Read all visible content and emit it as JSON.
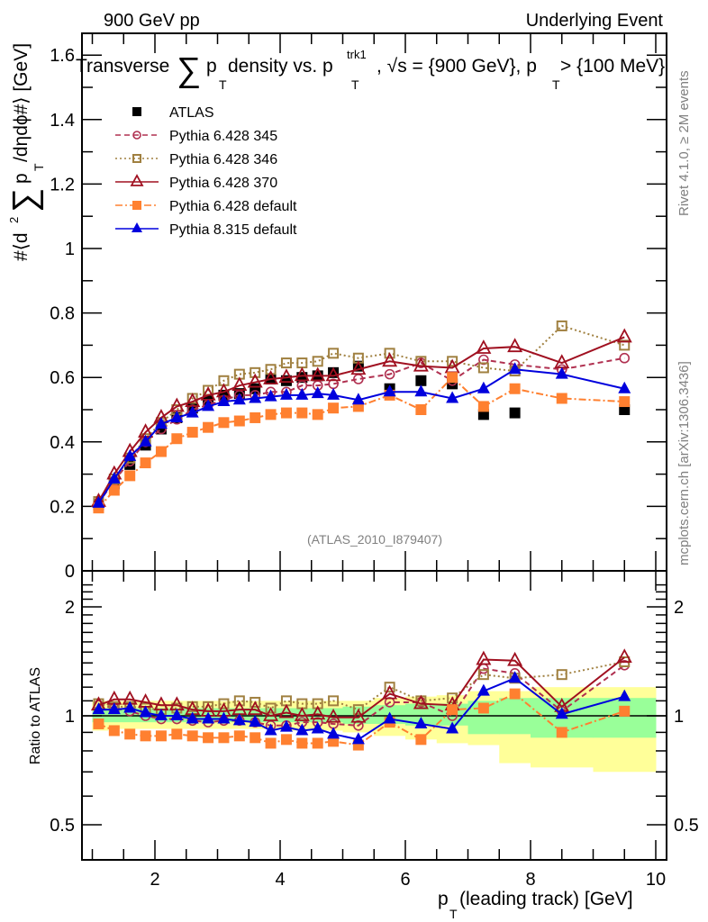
{
  "header": {
    "left_label": "900 GeV pp",
    "right_label": "Underlying Event"
  },
  "side_labels": {
    "rivet": "Rivet 4.1.0, ≥ 2M events",
    "mcplots": "mcplots.cern.ch [arXiv:1306.3436]"
  },
  "chart_data": [
    {
      "type": "line",
      "panel": "main",
      "title_parts": {
        "a": "Transverse",
        "sigma": "∑",
        "p": "p",
        "sub_T": "T",
        "b": " density vs. p",
        "sup_trk1": "trk1",
        "c": ", √s = {900 GeV}, p",
        "d": " > {100 MeV}"
      },
      "ylabel_parts": {
        "a": "#⟨d",
        "sup2": "2",
        "sigma": "∑",
        "b": "p",
        "sub_T": "T",
        "c": " /dηdϕ#⟩ [GeV]"
      },
      "analysis_label": "(ATLAS_2010_I879407)",
      "xlim": [
        0.85,
        10.15
      ],
      "ylim": [
        0,
        1.6
      ],
      "yticks": [
        0,
        0.2,
        0.4,
        0.6,
        0.8,
        1,
        1.2,
        1.4,
        1.6
      ],
      "ytick_labels": [
        "0",
        "0.2",
        "0.4",
        "0.6",
        "0.8",
        "1",
        "1.2",
        "1.4",
        "1.6"
      ],
      "legend_position": "top-left",
      "x": [
        1.1,
        1.35,
        1.6,
        1.85,
        2.1,
        2.35,
        2.6,
        2.85,
        3.1,
        3.35,
        3.6,
        3.85,
        4.1,
        4.35,
        4.6,
        4.85,
        5.25,
        5.75,
        6.25,
        6.75,
        7.25,
        7.75,
        8.5,
        9.5
      ],
      "series": [
        {
          "name": "ATLAS",
          "color": "#000000",
          "marker": "square-filled",
          "line": "none",
          "values": [
            0.205,
            0.27,
            0.33,
            0.39,
            0.44,
            0.475,
            0.505,
            0.53,
            0.545,
            0.55,
            0.565,
            0.595,
            0.59,
            0.6,
            0.605,
            0.615,
            0.635,
            0.565,
            0.59,
            0.58,
            0.485,
            0.49,
            null,
            0.5
          ]
        },
        {
          "name": "Pythia 6.428 345",
          "color": "#b03050",
          "marker": "circle-open",
          "line": "dashed",
          "values": [
            0.21,
            0.28,
            0.34,
            0.4,
            0.44,
            0.47,
            0.5,
            0.515,
            0.53,
            0.545,
            0.545,
            0.555,
            0.555,
            0.575,
            0.575,
            0.58,
            0.595,
            0.61,
            0.645,
            0.59,
            0.655,
            0.64,
            0.625,
            0.66
          ]
        },
        {
          "name": "Pythia 6.428 346",
          "color": "#a08040",
          "marker": "square-open",
          "line": "dotted",
          "values": [
            0.215,
            0.285,
            0.35,
            0.41,
            0.46,
            0.5,
            0.535,
            0.56,
            0.59,
            0.61,
            0.615,
            0.625,
            0.645,
            0.645,
            0.65,
            0.675,
            0.66,
            0.675,
            0.65,
            0.65,
            0.63,
            0.62,
            0.76,
            0.7
          ]
        },
        {
          "name": "Pythia 6.428 370",
          "color": "#a01020",
          "marker": "triangle-open",
          "line": "solid",
          "values": [
            0.215,
            0.3,
            0.37,
            0.43,
            0.475,
            0.51,
            0.525,
            0.545,
            0.555,
            0.575,
            0.585,
            0.595,
            0.6,
            0.605,
            0.605,
            0.605,
            0.625,
            0.65,
            0.635,
            0.63,
            0.69,
            0.695,
            0.645,
            0.725
          ]
        },
        {
          "name": "Pythia 6.428 default",
          "color": "#ff8030",
          "marker": "square-filled",
          "line": "dashdot",
          "values": [
            0.195,
            0.25,
            0.295,
            0.335,
            0.37,
            0.41,
            0.43,
            0.445,
            0.46,
            0.465,
            0.475,
            0.485,
            0.49,
            0.49,
            0.485,
            0.505,
            0.51,
            0.545,
            0.5,
            0.6,
            0.51,
            0.565,
            0.535,
            0.525
          ]
        },
        {
          "name": "Pythia 8.315 default",
          "color": "#0000dd",
          "marker": "triangle-filled",
          "line": "solid",
          "values": [
            0.21,
            0.285,
            0.355,
            0.4,
            0.455,
            0.475,
            0.49,
            0.51,
            0.525,
            0.53,
            0.535,
            0.54,
            0.545,
            0.545,
            0.55,
            0.545,
            0.53,
            0.555,
            0.555,
            0.535,
            0.565,
            0.625,
            0.61,
            0.565
          ]
        }
      ]
    },
    {
      "type": "line",
      "panel": "ratio",
      "ylabel": "Ratio to ATLAS",
      "xlabel_parts": {
        "p": "p",
        "sub_T": "T",
        "rest": " (leading track) [GeV]"
      },
      "yscale": "log",
      "ylim": [
        0.4,
        2.4
      ],
      "xlim": [
        0.85,
        10.15
      ],
      "xticks": [
        2,
        4,
        6,
        8,
        10
      ],
      "xtick_labels": [
        "2",
        "4",
        "6",
        "8",
        "10"
      ],
      "ytick_labels": [
        "0.5",
        "1",
        "2"
      ],
      "yticks": [
        0.5,
        1,
        2
      ],
      "bands": {
        "edges": [
          1.0,
          1.25,
          1.5,
          1.75,
          2.0,
          2.25,
          2.5,
          2.75,
          3.0,
          3.25,
          3.5,
          3.75,
          4.0,
          4.25,
          4.5,
          4.75,
          5.0,
          5.5,
          6.0,
          6.5,
          7.0,
          7.5,
          8.0,
          9.0,
          10.0
        ],
        "inner_color": "#99ff99",
        "outer_color": "#ffff99",
        "inner": [
          [
            0.96,
            1.05
          ],
          [
            0.96,
            1.05
          ],
          [
            0.96,
            1.05
          ],
          [
            0.96,
            1.05
          ],
          [
            0.96,
            1.05
          ],
          [
            0.96,
            1.05
          ],
          [
            0.96,
            1.05
          ],
          [
            0.96,
            1.05
          ],
          [
            0.96,
            1.05
          ],
          [
            0.96,
            1.05
          ],
          [
            0.96,
            1.05
          ],
          [
            0.96,
            1.05
          ],
          [
            0.96,
            1.05
          ],
          [
            0.96,
            1.05
          ],
          [
            0.96,
            1.05
          ],
          [
            0.96,
            1.05
          ],
          [
            0.95,
            1.06
          ],
          [
            0.95,
            1.07
          ],
          [
            0.94,
            1.08
          ],
          [
            0.94,
            1.08
          ],
          [
            0.89,
            1.1
          ],
          [
            0.89,
            1.12
          ],
          [
            0.87,
            1.12
          ],
          [
            0.87,
            1.12
          ]
        ],
        "outer": [
          [
            0.91,
            1.1
          ],
          [
            0.92,
            1.1
          ],
          [
            0.92,
            1.1
          ],
          [
            0.92,
            1.1
          ],
          [
            0.92,
            1.1
          ],
          [
            0.92,
            1.1
          ],
          [
            0.92,
            1.1
          ],
          [
            0.92,
            1.1
          ],
          [
            0.92,
            1.1
          ],
          [
            0.92,
            1.1
          ],
          [
            0.92,
            1.1
          ],
          [
            0.92,
            1.1
          ],
          [
            0.91,
            1.1
          ],
          [
            0.91,
            1.1
          ],
          [
            0.91,
            1.1
          ],
          [
            0.91,
            1.1
          ],
          [
            0.9,
            1.1
          ],
          [
            0.88,
            1.12
          ],
          [
            0.86,
            1.13
          ],
          [
            0.84,
            1.14
          ],
          [
            0.83,
            1.17
          ],
          [
            0.74,
            1.17
          ],
          [
            0.72,
            1.2
          ],
          [
            0.7,
            1.2
          ]
        ]
      },
      "x": [
        1.1,
        1.35,
        1.6,
        1.85,
        2.1,
        2.35,
        2.6,
        2.85,
        3.1,
        3.35,
        3.6,
        3.85,
        4.1,
        4.35,
        4.6,
        4.85,
        5.25,
        5.75,
        6.25,
        6.75,
        7.25,
        7.75,
        8.5,
        9.5
      ],
      "series": [
        {
          "name": "Pythia 6.428 345",
          "color": "#b03050",
          "marker": "circle-open",
          "line": "dashed",
          "values": [
            1.07,
            1.05,
            1.03,
            1.0,
            0.98,
            0.98,
            0.97,
            0.96,
            0.97,
            0.97,
            0.96,
            0.94,
            0.94,
            0.96,
            0.96,
            0.95,
            0.94,
            1.09,
            1.09,
            1.0,
            1.35,
            1.31,
            1.03,
            1.38
          ]
        },
        {
          "name": "Pythia 6.428 346",
          "color": "#a08040",
          "marker": "square-open",
          "line": "dotted",
          "values": [
            1.08,
            1.06,
            1.06,
            1.05,
            1.04,
            1.05,
            1.06,
            1.06,
            1.08,
            1.1,
            1.09,
            1.05,
            1.1,
            1.08,
            1.08,
            1.1,
            1.04,
            1.2,
            1.1,
            1.12,
            1.3,
            1.27,
            1.3,
            1.41
          ]
        },
        {
          "name": "Pythia 6.428 370",
          "color": "#a01020",
          "marker": "triangle-open",
          "line": "solid",
          "values": [
            1.07,
            1.11,
            1.11,
            1.09,
            1.07,
            1.07,
            1.04,
            1.03,
            1.03,
            1.04,
            1.04,
            1.0,
            1.02,
            1.0,
            1.01,
            0.99,
            0.99,
            1.15,
            1.08,
            1.07,
            1.43,
            1.42,
            1.06,
            1.45
          ]
        },
        {
          "name": "Pythia 6.428 default",
          "color": "#ff8030",
          "marker": "square-filled",
          "line": "dashdot",
          "values": [
            0.95,
            0.91,
            0.89,
            0.88,
            0.88,
            0.89,
            0.88,
            0.87,
            0.87,
            0.88,
            0.87,
            0.84,
            0.86,
            0.84,
            0.84,
            0.85,
            0.83,
            0.96,
            0.86,
            1.04,
            1.05,
            1.15,
            0.9,
            1.03
          ]
        },
        {
          "name": "Pythia 8.315 default",
          "color": "#0000dd",
          "marker": "triangle-filled",
          "line": "solid",
          "values": [
            1.04,
            1.04,
            1.05,
            1.02,
            1.0,
            1.0,
            0.98,
            0.98,
            0.98,
            0.97,
            0.96,
            0.91,
            0.93,
            0.91,
            0.92,
            0.89,
            0.86,
            0.98,
            0.95,
            0.92,
            1.17,
            1.27,
            1.01,
            1.13
          ]
        }
      ]
    }
  ]
}
